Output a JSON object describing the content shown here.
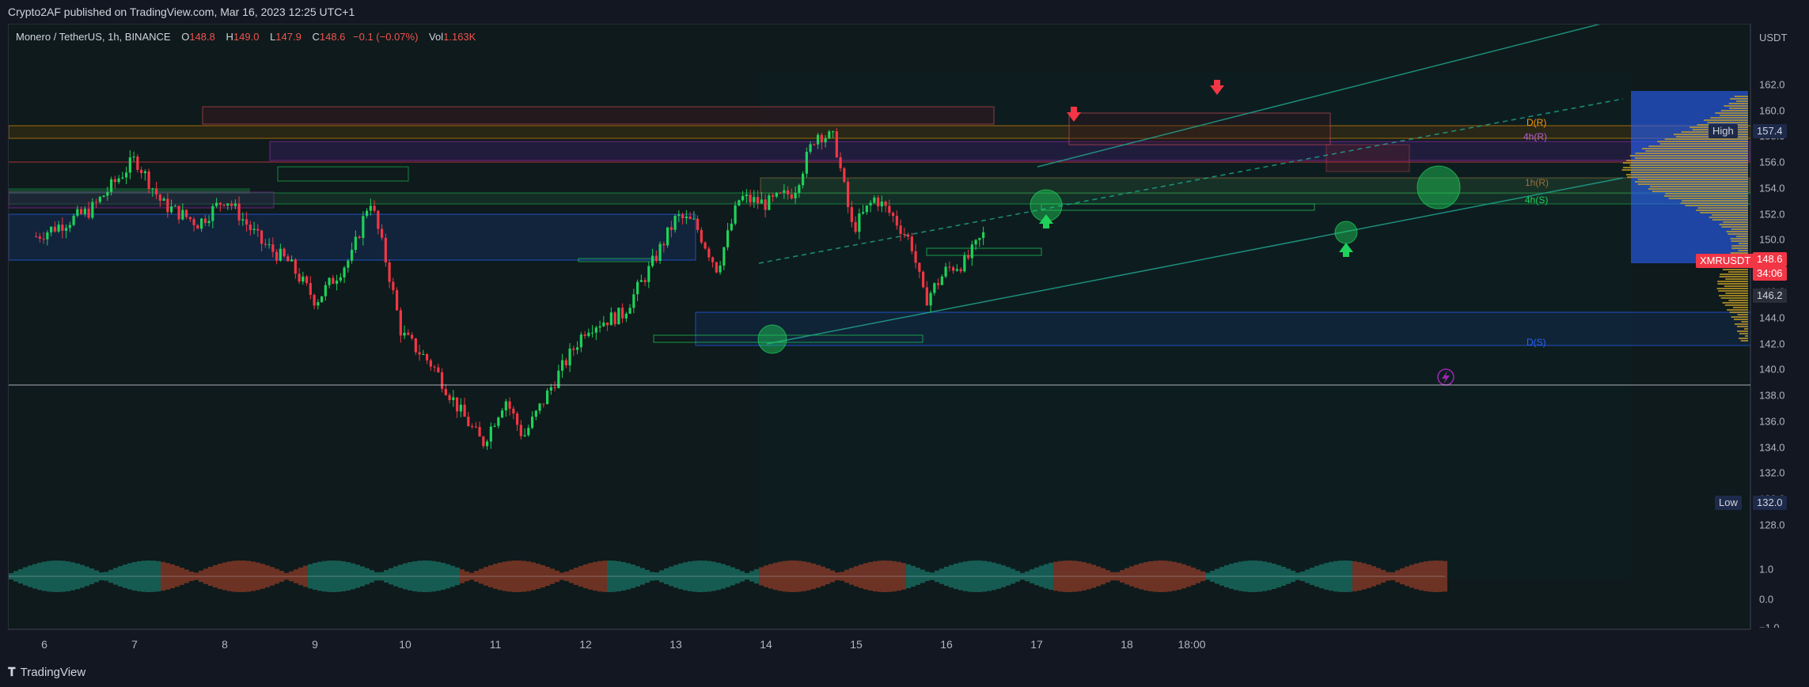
{
  "header": {
    "published": "Crypto2AF published on TradingView.com, Mar 16, 2023 12:25 UTC+1"
  },
  "legend": {
    "symbol": "Monero / TetherUS, 1h, BINANCE",
    "open_label": "O",
    "open": "148.8",
    "high_label": "H",
    "high": "149.0",
    "low_label": "L",
    "low": "147.9",
    "close_label": "C",
    "close": "148.6",
    "change": "−0.1 (−0.07%)",
    "vol_label": "Vol",
    "vol": "1.163K"
  },
  "price_scale": {
    "unit": "USDT",
    "ticks": [
      "162.0",
      "160.0",
      "158.0",
      "156.0",
      "154.0",
      "152.0",
      "150.0",
      "148.0",
      "146.0",
      "144.0",
      "142.0",
      "140.0",
      "138.0",
      "136.0",
      "134.0",
      "132.0",
      "130.0",
      "128.0"
    ],
    "high_label": "High",
    "high_value": "157.4",
    "ticker_label": "XMRUSDT",
    "last_price": "148.6",
    "countdown": "34:06",
    "level_value": "146.2",
    "low_label": "Low",
    "low_value": "132.0"
  },
  "osc_scale": {
    "ticks": [
      "1.0",
      "0.0",
      "−1.0"
    ]
  },
  "time_scale": {
    "labels": [
      "6",
      "7",
      "8",
      "9",
      "10",
      "11",
      "12",
      "13",
      "14",
      "15",
      "16",
      "17",
      "18",
      "18:00"
    ]
  },
  "zone_labels": {
    "d_resistance": "D(R)",
    "h4_resistance": "4h(R)",
    "h1_resistance": "1h(R)",
    "h4_support": "4h(S)",
    "d_support": "D(S)"
  },
  "footer": {
    "brand": "TradingView"
  },
  "colors": {
    "bull": "#22ab94",
    "bull_bright": "#1fd15a",
    "bear": "#f23645",
    "accent_blue": "#2962ff",
    "orange": "#ff9800",
    "purple": "#9c27b0"
  },
  "chart_data": {
    "type": "candlestick",
    "title": "Monero / TetherUS, 1h, BINANCE",
    "ylabel": "USDT",
    "ylim": [
      128,
      164
    ],
    "x_day_labels": [
      "6",
      "7",
      "8",
      "9",
      "10",
      "11",
      "12",
      "13",
      "14",
      "15",
      "16",
      "17",
      "18"
    ],
    "session_high": 157.4,
    "session_low": 132.0,
    "last": 148.6,
    "levels": [
      {
        "name": "D(R)",
        "value": 153.8
      },
      {
        "name": "4h(R)",
        "value": 152.6
      },
      {
        "name": "1h(R)",
        "value": 148.2
      },
      {
        "name": "4h(S)",
        "value": 146.4
      },
      {
        "name": "D(S)",
        "value": 132.0
      }
    ],
    "key_points": [
      {
        "day": 5.9,
        "price": 148.5
      },
      {
        "day": 6.5,
        "price": 150.5
      },
      {
        "day": 7.0,
        "price": 154.5
      },
      {
        "day": 7.3,
        "price": 151.0
      },
      {
        "day": 7.7,
        "price": 149.5
      },
      {
        "day": 8.0,
        "price": 151.5
      },
      {
        "day": 8.4,
        "price": 148.0
      },
      {
        "day": 8.7,
        "price": 146.5
      },
      {
        "day": 9.0,
        "price": 143.5
      },
      {
        "day": 9.4,
        "price": 147.0
      },
      {
        "day": 9.6,
        "price": 151.5
      },
      {
        "day": 9.8,
        "price": 146.0
      },
      {
        "day": 9.95,
        "price": 141.0
      },
      {
        "day": 10.3,
        "price": 138.5
      },
      {
        "day": 10.6,
        "price": 135.0
      },
      {
        "day": 10.85,
        "price": 132.5
      },
      {
        "day": 11.1,
        "price": 136.0
      },
      {
        "day": 11.3,
        "price": 133.0
      },
      {
        "day": 11.7,
        "price": 138.0
      },
      {
        "day": 12.0,
        "price": 141.5
      },
      {
        "day": 12.4,
        "price": 142.5
      },
      {
        "day": 12.7,
        "price": 146.0
      },
      {
        "day": 13.0,
        "price": 150.0
      },
      {
        "day": 13.2,
        "price": 149.5
      },
      {
        "day": 13.45,
        "price": 146.0
      },
      {
        "day": 13.7,
        "price": 151.5
      },
      {
        "day": 14.0,
        "price": 151.0
      },
      {
        "day": 14.3,
        "price": 152.0
      },
      {
        "day": 14.55,
        "price": 156.5
      },
      {
        "day": 14.75,
        "price": 156.0
      },
      {
        "day": 14.95,
        "price": 149.0
      },
      {
        "day": 15.2,
        "price": 151.5
      },
      {
        "day": 15.4,
        "price": 150.0
      },
      {
        "day": 15.6,
        "price": 148.0
      },
      {
        "day": 15.75,
        "price": 143.5
      },
      {
        "day": 16.0,
        "price": 146.0
      },
      {
        "day": 16.2,
        "price": 146.5
      },
      {
        "day": 16.4,
        "price": 148.6
      }
    ],
    "oscillator_ylim": [
      -1,
      1
    ]
  }
}
